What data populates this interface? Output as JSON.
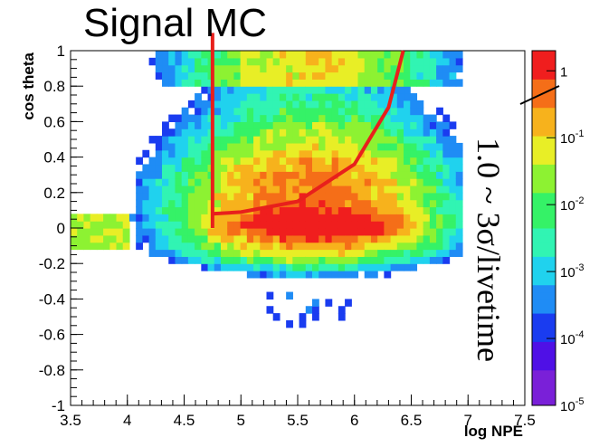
{
  "title": "Signal MC",
  "annotation": "1.0 ~ 3σ/livetime",
  "chart_data": {
    "type": "heatmap",
    "xlabel": "log NPE",
    "ylabel": "cos theta",
    "xlim": [
      3.5,
      7.5
    ],
    "ylim": [
      -1,
      1
    ],
    "x_ticks": [
      "3.5",
      "4",
      "4.5",
      "5",
      "5.5",
      "6",
      "6.5",
      "7",
      "7.5"
    ],
    "y_ticks": [
      "-1",
      "-0.8",
      "-0.6",
      "-0.4",
      "-0.2",
      "0",
      "0.2",
      "0.4",
      "0.6",
      "0.8",
      "1"
    ],
    "z_scale": "log",
    "zlim": [
      1e-05,
      2
    ],
    "z_ticks": [
      "10^-5",
      "10^-4",
      "10^-3",
      "10^-2",
      "10^-1",
      "1"
    ],
    "cut_lines": [
      {
        "type": "vertical",
        "x": 4.75,
        "y_range": [
          0.0,
          1.1
        ]
      },
      {
        "type": "curve",
        "points": [
          [
            4.75,
            0.08
          ],
          [
            5.0,
            0.09
          ],
          [
            5.5,
            0.15
          ],
          [
            6.0,
            0.36
          ],
          [
            6.3,
            0.68
          ],
          [
            6.43,
            1.0
          ]
        ]
      }
    ]
  },
  "colors": {
    "cut_line": "#e8201c",
    "palette": [
      "#7a20d8",
      "#4f10e6",
      "#1a3cf0",
      "#1f8cf5",
      "#20d2ee",
      "#31f4b3",
      "#35f267",
      "#8df232",
      "#e8ee26",
      "#f7b21c",
      "#f56e18",
      "#f01e1e"
    ]
  }
}
